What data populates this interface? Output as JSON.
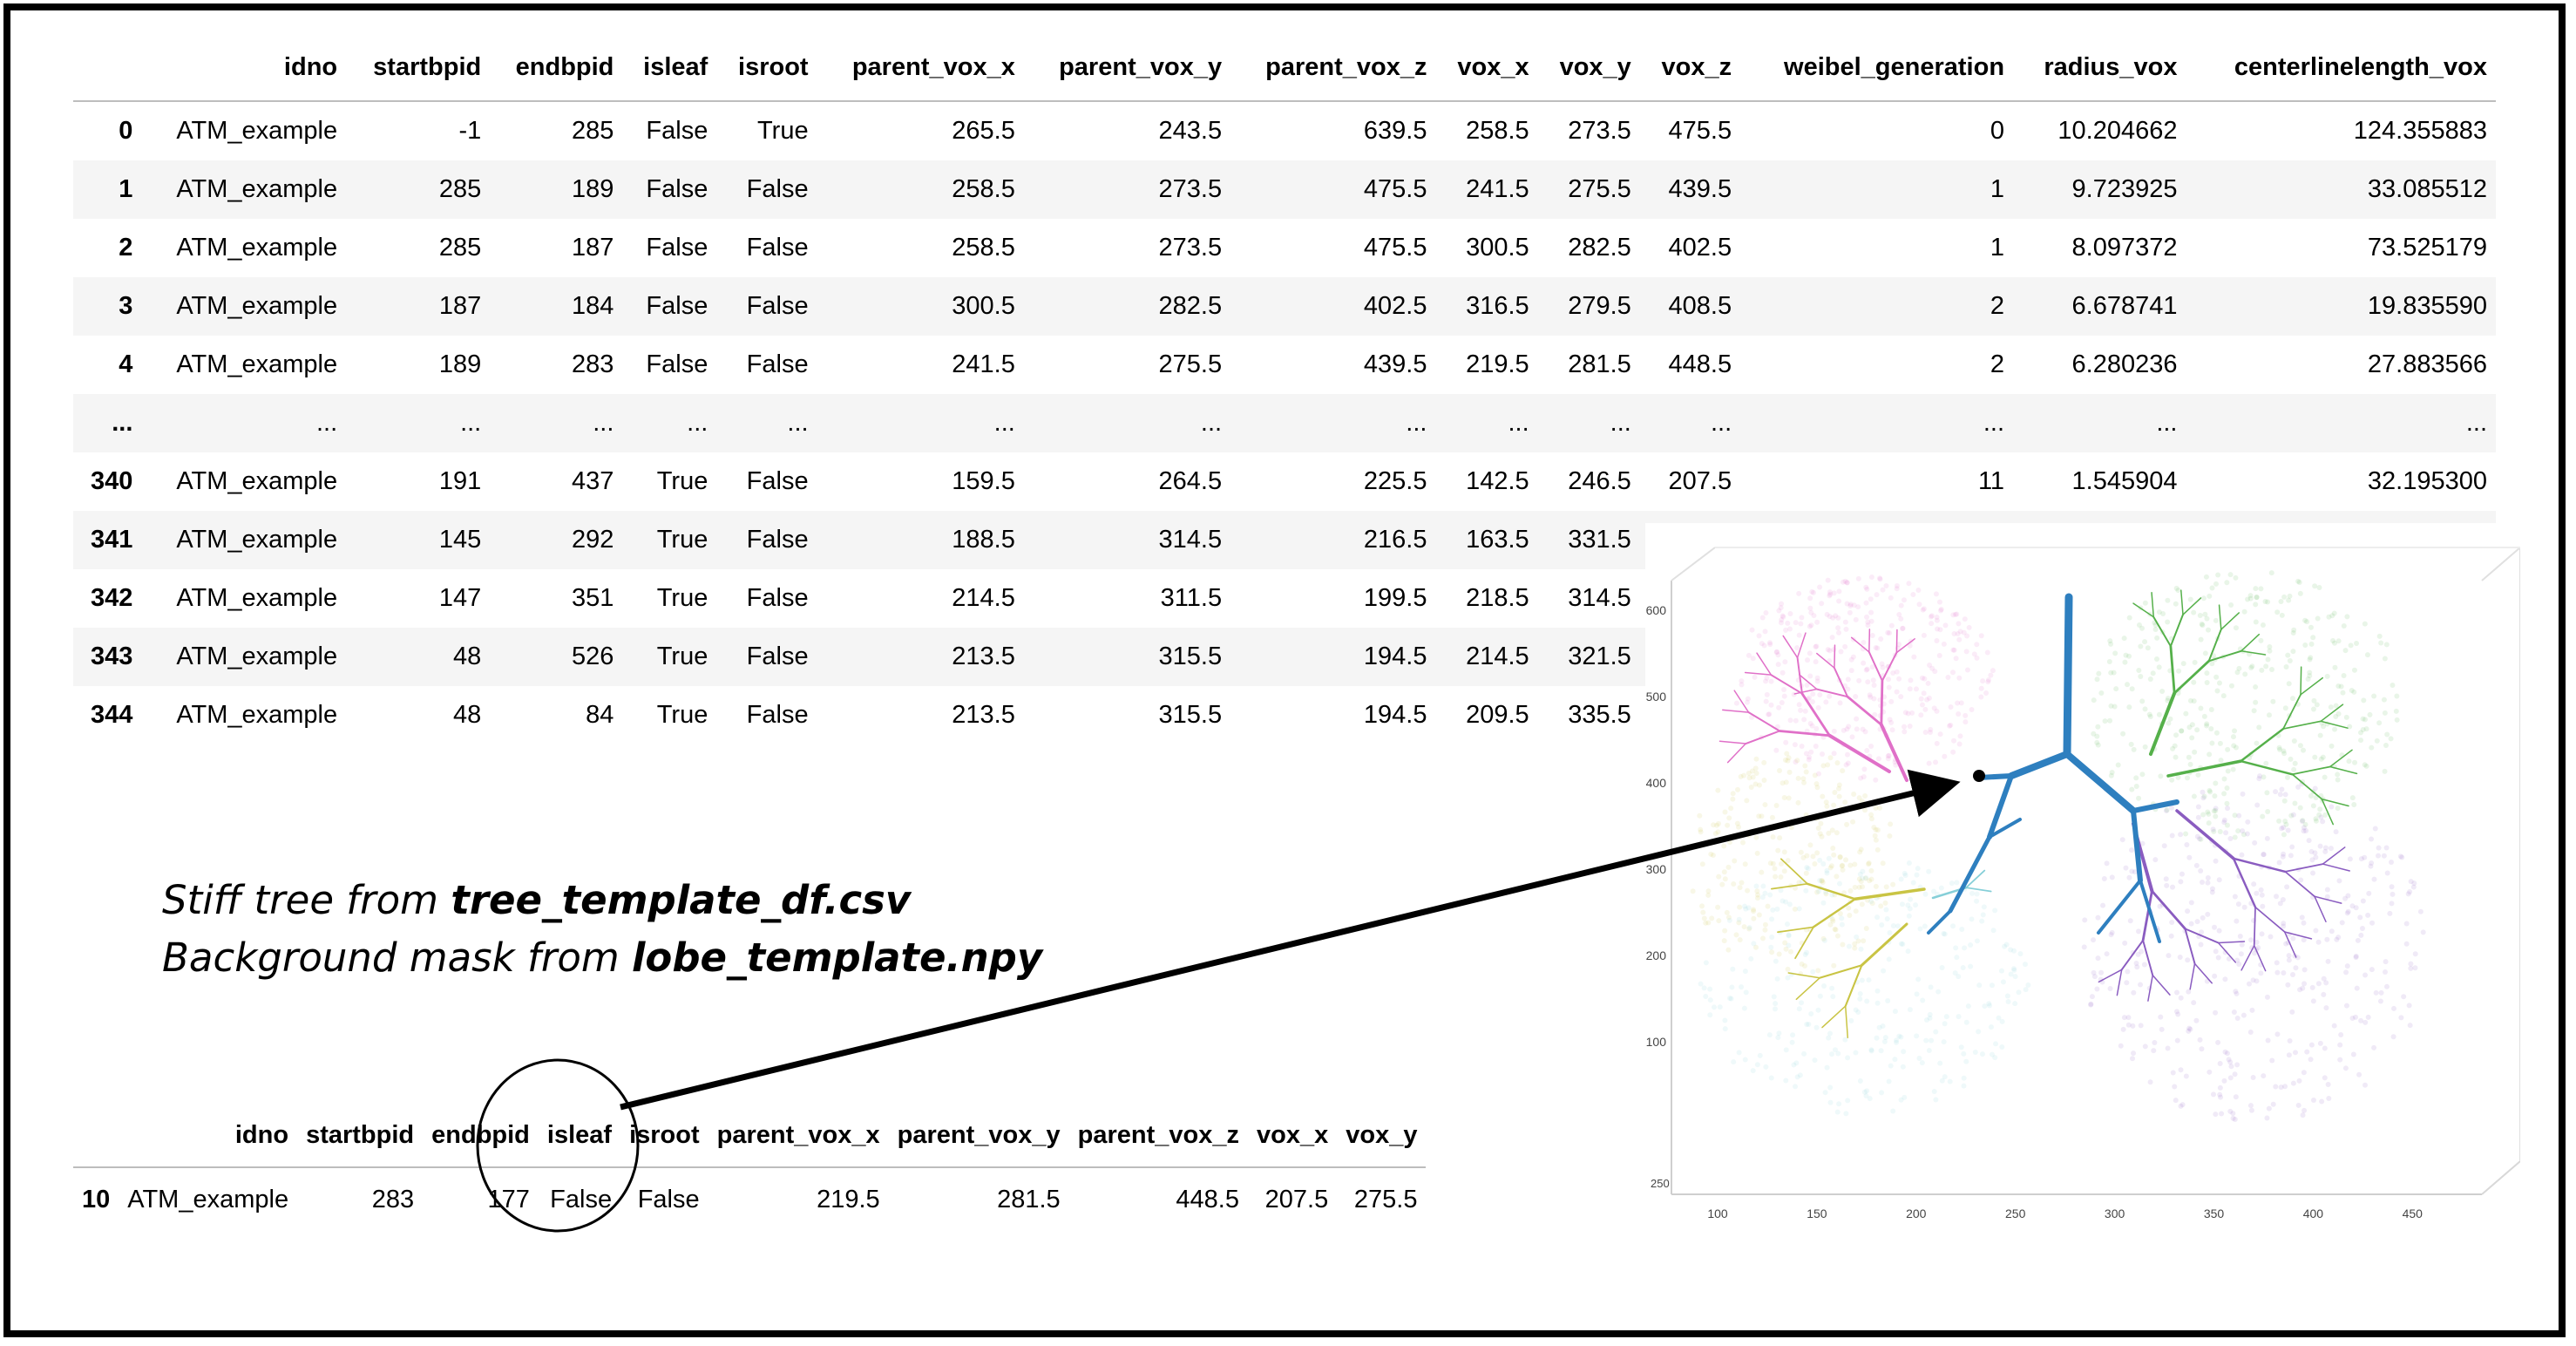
{
  "top_table": {
    "columns": [
      "",
      "idno",
      "startbpid",
      "endbpid",
      "isleaf",
      "isroot",
      "parent_vox_x",
      "parent_vox_y",
      "parent_vox_z",
      "vox_x",
      "vox_y",
      "vox_z",
      "weibel_generation",
      "radius_vox",
      "centerlinelength_vox"
    ],
    "rows": [
      [
        "0",
        "ATM_example",
        "-1",
        "285",
        "False",
        "True",
        "265.5",
        "243.5",
        "639.5",
        "258.5",
        "273.5",
        "475.5",
        "0",
        "10.204662",
        "124.355883"
      ],
      [
        "1",
        "ATM_example",
        "285",
        "189",
        "False",
        "False",
        "258.5",
        "273.5",
        "475.5",
        "241.5",
        "275.5",
        "439.5",
        "1",
        "9.723925",
        "33.085512"
      ],
      [
        "2",
        "ATM_example",
        "285",
        "187",
        "False",
        "False",
        "258.5",
        "273.5",
        "475.5",
        "300.5",
        "282.5",
        "402.5",
        "1",
        "8.097372",
        "73.525179"
      ],
      [
        "3",
        "ATM_example",
        "187",
        "184",
        "False",
        "False",
        "300.5",
        "282.5",
        "402.5",
        "316.5",
        "279.5",
        "408.5",
        "2",
        "6.678741",
        "19.835590"
      ],
      [
        "4",
        "ATM_example",
        "189",
        "283",
        "False",
        "False",
        "241.5",
        "275.5",
        "439.5",
        "219.5",
        "281.5",
        "448.5",
        "2",
        "6.280236",
        "27.883566"
      ],
      [
        "...",
        "...",
        "...",
        "...",
        "...",
        "...",
        "...",
        "...",
        "...",
        "...",
        "...",
        "...",
        "...",
        "...",
        "..."
      ],
      [
        "340",
        "ATM_example",
        "191",
        "437",
        "True",
        "False",
        "159.5",
        "264.5",
        "225.5",
        "142.5",
        "246.5",
        "207.5",
        "11",
        "1.545904",
        "32.195300"
      ],
      [
        "341",
        "ATM_example",
        "145",
        "292",
        "True",
        "False",
        "188.5",
        "314.5",
        "216.5",
        "163.5",
        "331.5",
        "",
        "",
        "",
        ""
      ],
      [
        "342",
        "ATM_example",
        "147",
        "351",
        "True",
        "False",
        "214.5",
        "311.5",
        "199.5",
        "218.5",
        "314.5",
        "",
        "",
        "",
        ""
      ],
      [
        "343",
        "ATM_example",
        "48",
        "526",
        "True",
        "False",
        "213.5",
        "315.5",
        "194.5",
        "214.5",
        "321.5",
        "",
        "",
        "",
        ""
      ],
      [
        "344",
        "ATM_example",
        "48",
        "84",
        "True",
        "False",
        "213.5",
        "315.5",
        "194.5",
        "209.5",
        "335.5",
        "",
        "",
        "",
        ""
      ]
    ]
  },
  "bottom_table": {
    "columns": [
      "",
      "idno",
      "startbpid",
      "endbpid",
      "isleaf",
      "isroot",
      "parent_vox_x",
      "parent_vox_y",
      "parent_vox_z",
      "vox_x",
      "vox_y"
    ],
    "rows": [
      [
        "10",
        "ATM_example",
        "283",
        "177",
        "False",
        "False",
        "219.5",
        "281.5",
        "448.5",
        "207.5",
        "275.5"
      ]
    ]
  },
  "caption": {
    "line1_prefix": "Stiff tree from ",
    "line1_file": "tree_template_df.csv",
    "line2_prefix": "Background mask from ",
    "line2_file": "lobe_template.npy"
  },
  "plot": {
    "x_ticks": [
      "100",
      "150",
      "200",
      "250",
      "300",
      "350",
      "400",
      "450"
    ],
    "z_ticks": [
      "100",
      "200",
      "300",
      "400",
      "500",
      "600"
    ],
    "y_tick_fragment": "250",
    "colors": {
      "tree": "#2e7fbf",
      "lobe_pink": "#e070c8",
      "lobe_green": "#55b04a",
      "lobe_yellow": "#c9c444",
      "lobe_cyan": "#86cfd8",
      "lobe_purple": "#8a5cc0"
    }
  }
}
